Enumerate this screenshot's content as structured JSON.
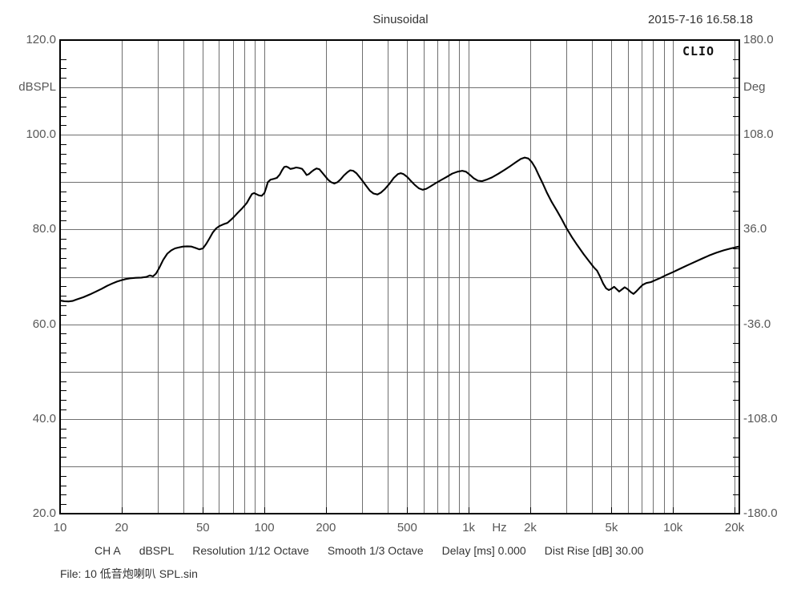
{
  "header": {
    "title": "Sinusoidal",
    "datetime": "2015-7-16 16.58.18"
  },
  "branding": {
    "logo": "CLIO"
  },
  "axes": {
    "left": {
      "unit": "dBSPL",
      "unit_at": 110,
      "ticks": [
        {
          "label": "120.0",
          "value": 120
        },
        {
          "label": "100.0",
          "value": 100
        },
        {
          "label": "80.0",
          "value": 80
        },
        {
          "label": "60.0",
          "value": 60
        },
        {
          "label": "40.0",
          "value": 40
        },
        {
          "label": "20.0",
          "value": 20
        }
      ]
    },
    "right": {
      "unit": "Deg",
      "unit_at": 144,
      "ticks": [
        {
          "label": "180.0",
          "value": 180
        },
        {
          "label": "108.0",
          "value": 108
        },
        {
          "label": "36.0",
          "value": 36
        },
        {
          "label": "-36.0",
          "value": -36
        },
        {
          "label": "-108.0",
          "value": -108
        },
        {
          "label": "-180.0",
          "value": -180
        }
      ]
    },
    "x": {
      "unit": "Hz",
      "unit_at": 1414,
      "ticks": [
        {
          "label": "10",
          "value": 10
        },
        {
          "label": "20",
          "value": 20
        },
        {
          "label": "50",
          "value": 50
        },
        {
          "label": "100",
          "value": 100
        },
        {
          "label": "200",
          "value": 200
        },
        {
          "label": "500",
          "value": 500
        },
        {
          "label": "1k",
          "value": 1000
        },
        {
          "label": "2k",
          "value": 2000
        },
        {
          "label": "5k",
          "value": 5000
        },
        {
          "label": "10k",
          "value": 10000
        },
        {
          "label": "20k",
          "value": 20000
        }
      ]
    }
  },
  "footer": {
    "status_segments": [
      "CH A",
      "dBSPL",
      "Resolution 1/12 Octave",
      "Smooth 1/3 Octave",
      "Delay [ms] 0.000",
      "Dist Rise [dB] 30.00"
    ],
    "file_line": "File: 10 低音炮喇叭 SPL.sin"
  },
  "colors": {
    "grid": "#6f6f6f",
    "border": "#000000",
    "curve": "#000000",
    "axis_text": "#585858",
    "text": "#343434"
  },
  "chart_data": {
    "type": "line",
    "title": "Sinusoidal",
    "xscale": "log",
    "xlim": [
      10,
      21100
    ],
    "ylim": [
      20,
      120
    ],
    "y2lim": [
      -180,
      180
    ],
    "xlabel": "Hz",
    "ylabel": "dBSPL",
    "y2label": "Deg",
    "grid": true,
    "legend": "none",
    "series": [
      {
        "name": "CH A dBSPL",
        "color": "#000000",
        "points": [
          [
            10,
            65.0
          ],
          [
            10.5,
            64.85
          ],
          [
            11,
            64.8
          ],
          [
            11.5,
            64.9
          ],
          [
            12,
            65.2
          ],
          [
            13,
            65.7
          ],
          [
            14,
            66.3
          ],
          [
            15,
            66.9
          ],
          [
            16,
            67.5
          ],
          [
            17,
            68.1
          ],
          [
            18,
            68.6
          ],
          [
            19,
            69.0
          ],
          [
            20,
            69.3
          ],
          [
            21,
            69.55
          ],
          [
            22,
            69.7
          ],
          [
            23.5,
            69.8
          ],
          [
            25,
            69.85
          ],
          [
            26.5,
            70.0
          ],
          [
            27.5,
            70.3
          ],
          [
            28.5,
            70.1
          ],
          [
            29.5,
            70.7
          ],
          [
            30.5,
            71.8
          ],
          [
            32,
            73.6
          ],
          [
            33.5,
            74.9
          ],
          [
            35,
            75.6
          ],
          [
            36.5,
            76.0
          ],
          [
            38,
            76.2
          ],
          [
            40,
            76.4
          ],
          [
            42,
            76.45
          ],
          [
            44,
            76.4
          ],
          [
            46,
            76.1
          ],
          [
            48,
            75.8
          ],
          [
            50,
            76.0
          ],
          [
            52,
            77.0
          ],
          [
            54,
            78.2
          ],
          [
            56,
            79.4
          ],
          [
            58,
            80.2
          ],
          [
            60,
            80.7
          ],
          [
            63,
            81.1
          ],
          [
            66,
            81.4
          ],
          [
            70,
            82.4
          ],
          [
            74,
            83.5
          ],
          [
            78,
            84.5
          ],
          [
            82,
            85.6
          ],
          [
            85,
            86.8
          ],
          [
            87,
            87.5
          ],
          [
            89,
            87.7
          ],
          [
            91,
            87.5
          ],
          [
            94,
            87.2
          ],
          [
            97,
            87.1
          ],
          [
            100,
            87.7
          ],
          [
            102,
            88.8
          ],
          [
            104,
            90.0
          ],
          [
            107,
            90.5
          ],
          [
            111,
            90.7
          ],
          [
            115,
            90.9
          ],
          [
            119,
            91.6
          ],
          [
            122,
            92.5
          ],
          [
            125,
            93.2
          ],
          [
            128,
            93.3
          ],
          [
            131,
            93.1
          ],
          [
            134,
            92.8
          ],
          [
            138,
            92.9
          ],
          [
            143,
            93.1
          ],
          [
            148,
            93.0
          ],
          [
            153,
            92.8
          ],
          [
            157,
            92.2
          ],
          [
            161,
            91.5
          ],
          [
            165,
            91.7
          ],
          [
            170,
            92.2
          ],
          [
            175,
            92.6
          ],
          [
            180,
            92.9
          ],
          [
            186,
            92.7
          ],
          [
            192,
            92.0
          ],
          [
            198,
            91.3
          ],
          [
            205,
            90.5
          ],
          [
            212,
            90.0
          ],
          [
            220,
            89.7
          ],
          [
            228,
            90.0
          ],
          [
            236,
            90.6
          ],
          [
            245,
            91.4
          ],
          [
            255,
            92.1
          ],
          [
            263,
            92.5
          ],
          [
            272,
            92.4
          ],
          [
            282,
            91.9
          ],
          [
            292,
            91.1
          ],
          [
            303,
            90.2
          ],
          [
            315,
            89.2
          ],
          [
            328,
            88.2
          ],
          [
            342,
            87.6
          ],
          [
            358,
            87.4
          ],
          [
            372,
            87.8
          ],
          [
            390,
            88.6
          ],
          [
            410,
            89.7
          ],
          [
            430,
            90.9
          ],
          [
            450,
            91.7
          ],
          [
            465,
            91.9
          ],
          [
            480,
            91.7
          ],
          [
            500,
            91.1
          ],
          [
            520,
            90.3
          ],
          [
            545,
            89.4
          ],
          [
            570,
            88.7
          ],
          [
            595,
            88.4
          ],
          [
            620,
            88.6
          ],
          [
            650,
            89.1
          ],
          [
            690,
            89.8
          ],
          [
            730,
            90.4
          ],
          [
            780,
            91.1
          ],
          [
            830,
            91.8
          ],
          [
            880,
            92.2
          ],
          [
            930,
            92.4
          ],
          [
            970,
            92.2
          ],
          [
            1010,
            91.6
          ],
          [
            1060,
            90.8
          ],
          [
            1110,
            90.3
          ],
          [
            1160,
            90.2
          ],
          [
            1220,
            90.5
          ],
          [
            1300,
            91.0
          ],
          [
            1400,
            91.8
          ],
          [
            1500,
            92.6
          ],
          [
            1600,
            93.4
          ],
          [
            1700,
            94.2
          ],
          [
            1800,
            94.9
          ],
          [
            1880,
            95.2
          ],
          [
            1960,
            95.0
          ],
          [
            2040,
            94.2
          ],
          [
            2120,
            93.0
          ],
          [
            2200,
            91.5
          ],
          [
            2300,
            89.8
          ],
          [
            2420,
            87.7
          ],
          [
            2550,
            85.8
          ],
          [
            2700,
            84.0
          ],
          [
            2850,
            82.2
          ],
          [
            3000,
            80.4
          ],
          [
            3200,
            78.4
          ],
          [
            3400,
            76.7
          ],
          [
            3650,
            74.8
          ],
          [
            3900,
            73.2
          ],
          [
            4100,
            72.0
          ],
          [
            4250,
            71.3
          ],
          [
            4400,
            70.0
          ],
          [
            4550,
            68.6
          ],
          [
            4700,
            67.6
          ],
          [
            4850,
            67.2
          ],
          [
            5000,
            67.5
          ],
          [
            5150,
            67.9
          ],
          [
            5300,
            67.4
          ],
          [
            5450,
            66.9
          ],
          [
            5600,
            67.3
          ],
          [
            5800,
            67.8
          ],
          [
            6000,
            67.4
          ],
          [
            6200,
            66.8
          ],
          [
            6400,
            66.4
          ],
          [
            6600,
            66.9
          ],
          [
            6800,
            67.5
          ],
          [
            7100,
            68.3
          ],
          [
            7400,
            68.7
          ],
          [
            7800,
            68.9
          ],
          [
            8200,
            69.3
          ],
          [
            8700,
            69.8
          ],
          [
            9300,
            70.4
          ],
          [
            10000,
            71.0
          ],
          [
            10800,
            71.7
          ],
          [
            11700,
            72.4
          ],
          [
            12700,
            73.1
          ],
          [
            13800,
            73.8
          ],
          [
            15000,
            74.5
          ],
          [
            16300,
            75.1
          ],
          [
            17700,
            75.6
          ],
          [
            19200,
            76.0
          ],
          [
            20500,
            76.3
          ],
          [
            21000,
            76.4
          ]
        ]
      }
    ]
  }
}
